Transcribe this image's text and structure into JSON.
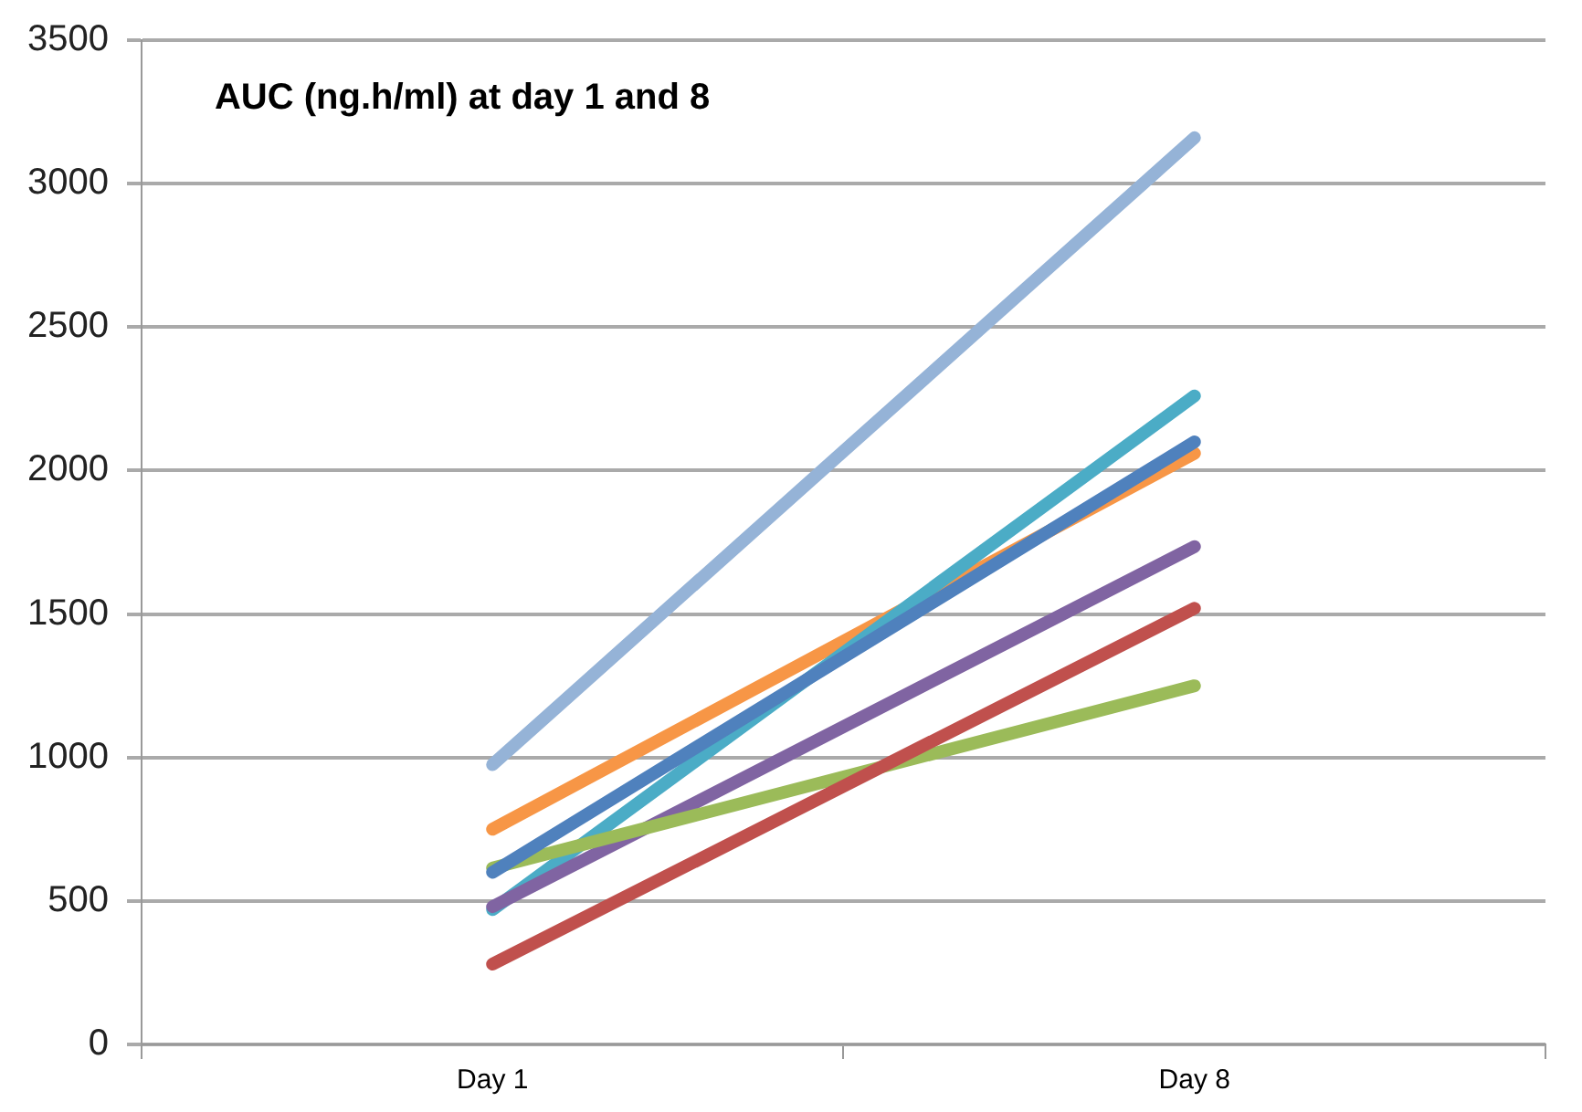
{
  "chart_data": {
    "type": "line",
    "title": "AUC (ng.h/ml) at day 1 and 8",
    "categories": [
      "Day 1",
      "Day 8"
    ],
    "series": [
      {
        "color": "#4f81bd",
        "values": [
          600,
          2100
        ]
      },
      {
        "color": "#c0504d",
        "values": [
          280,
          1520
        ]
      },
      {
        "color": "#9bbb59",
        "values": [
          615,
          1250
        ]
      },
      {
        "color": "#8064a2",
        "values": [
          480,
          1735
        ]
      },
      {
        "color": "#4bacc6",
        "values": [
          470,
          2260
        ]
      },
      {
        "color": "#f79646",
        "values": [
          750,
          2060
        ]
      },
      {
        "color": "#95b3d7",
        "values": [
          975,
          3160
        ]
      }
    ],
    "ylim": [
      0,
      3500
    ],
    "yticks": [
      0,
      500,
      1000,
      1500,
      2000,
      2500,
      3000,
      3500
    ],
    "grid": "y",
    "legend": false,
    "marker": "none",
    "line_style": "solid"
  }
}
